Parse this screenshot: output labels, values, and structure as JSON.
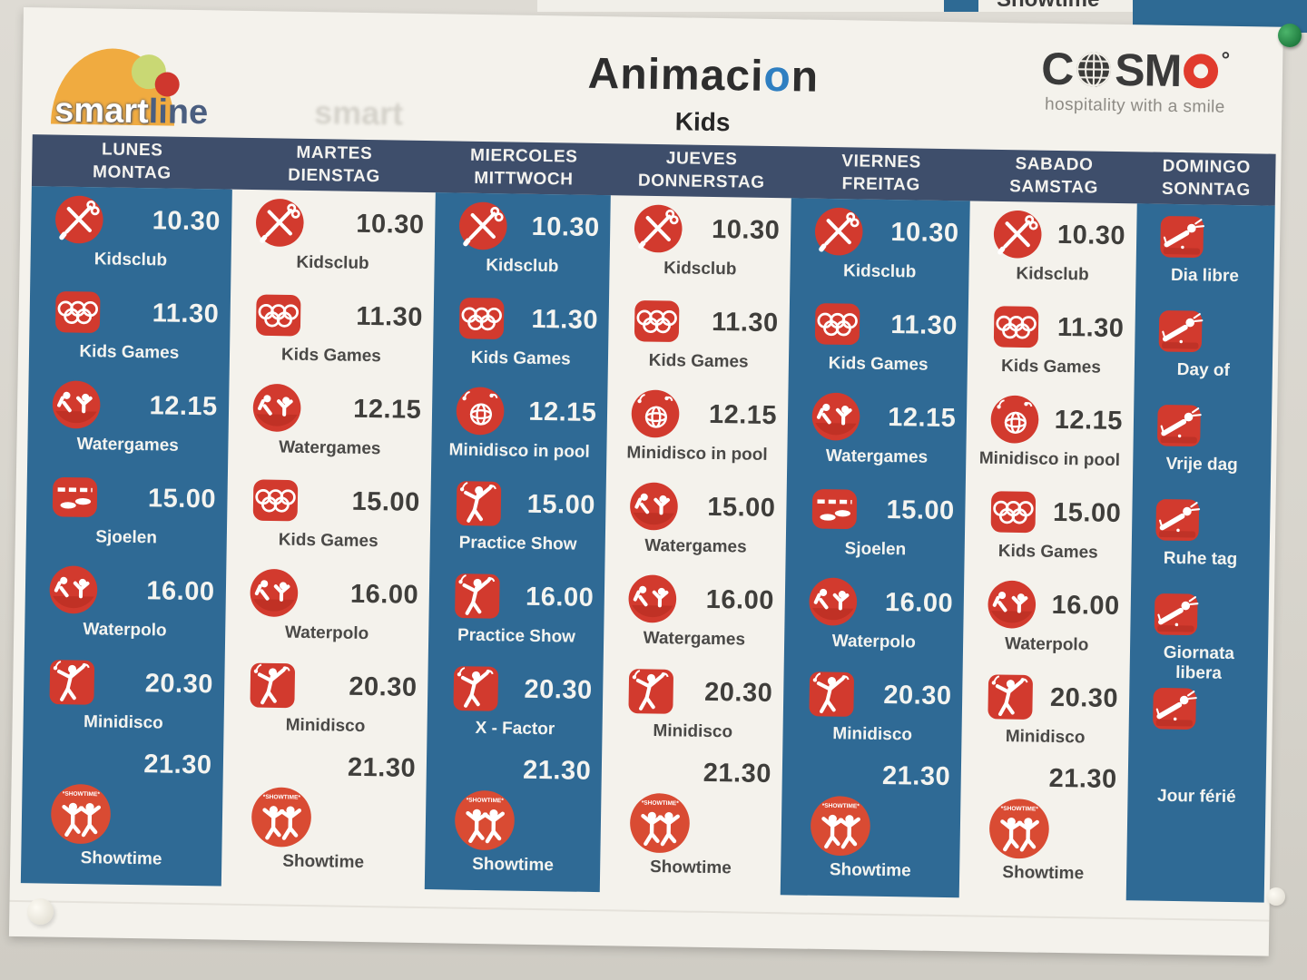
{
  "wall": {
    "other_poster_fragment_label": "Showtime"
  },
  "header": {
    "smartline": {
      "word1": "smart",
      "word2": "line"
    },
    "ghost_text": "smart",
    "title_parts": [
      "Animaci",
      "o",
      "n"
    ],
    "subtitle": "Kids",
    "cosmo": {
      "c": "C",
      "sm": "SM",
      "degree": "°",
      "tagline": "hospitality with a smile"
    }
  },
  "colors": {
    "column_blue": "#2f6a95",
    "header_navy": "#3e4e6b",
    "icon_red": "#d23a2e",
    "showtime_red": "#d94b33",
    "title_accent_blue": "#2f7fc1",
    "cosmo_red": "#e13b2d",
    "smartline_orange": "#f0ab40",
    "smartline_green": "#c9d874",
    "smartline_red": "#cf372e"
  },
  "schedule": {
    "columns": [
      {
        "day_es": "LUNES",
        "day_de": "MONTAG",
        "tone": "blue",
        "events": [
          {
            "time": "10.30",
            "label": "Kidsclub",
            "icon": "kidsclub"
          },
          {
            "time": "11.30",
            "label": "Kids Games",
            "icon": "rings"
          },
          {
            "time": "12.15",
            "label": "Watergames",
            "icon": "swimmers"
          },
          {
            "time": "15.00",
            "label": "Sjoelen",
            "icon": "sjoelen"
          },
          {
            "time": "16.00",
            "label": "Waterpolo",
            "icon": "swimmers"
          },
          {
            "time": "20.30",
            "label": "Minidisco",
            "icon": "dancer"
          },
          {
            "time": "21.30",
            "label": "Showtime",
            "icon": "showtime",
            "time_above": true
          }
        ]
      },
      {
        "day_es": "MARTES",
        "day_de": "DIENSTAG",
        "tone": "white",
        "events": [
          {
            "time": "10.30",
            "label": "Kidsclub",
            "icon": "kidsclub"
          },
          {
            "time": "11.30",
            "label": "Kids Games",
            "icon": "rings"
          },
          {
            "time": "12.15",
            "label": "Watergames",
            "icon": "swimmers"
          },
          {
            "time": "15.00",
            "label": "Kids Games",
            "icon": "rings"
          },
          {
            "time": "16.00",
            "label": "Waterpolo",
            "icon": "swimmers"
          },
          {
            "time": "20.30",
            "label": "Minidisco",
            "icon": "dancer"
          },
          {
            "time": "21.30",
            "label": "Showtime",
            "icon": "showtime",
            "time_above": true
          }
        ]
      },
      {
        "day_es": "MIERCOLES",
        "day_de": "MITTWOCH",
        "tone": "blue",
        "events": [
          {
            "time": "10.30",
            "label": "Kidsclub",
            "icon": "kidsclub"
          },
          {
            "time": "11.30",
            "label": "Kids Games",
            "icon": "rings"
          },
          {
            "time": "12.15",
            "label": "Minidisco in pool",
            "icon": "discoball"
          },
          {
            "time": "15.00",
            "label": "Practice Show",
            "icon": "dancer"
          },
          {
            "time": "16.00",
            "label": "Practice Show",
            "icon": "dancer"
          },
          {
            "time": "20.30",
            "label": "X - Factor",
            "icon": "dancer"
          },
          {
            "time": "21.30",
            "label": "Showtime",
            "icon": "showtime",
            "time_above": true
          }
        ]
      },
      {
        "day_es": "JUEVES",
        "day_de": "DONNERSTAG",
        "tone": "white",
        "events": [
          {
            "time": "10.30",
            "label": "Kidsclub",
            "icon": "kidsclub"
          },
          {
            "time": "11.30",
            "label": "Kids Games",
            "icon": "rings"
          },
          {
            "time": "12.15",
            "label": "Minidisco in pool",
            "icon": "discoball"
          },
          {
            "time": "15.00",
            "label": "Watergames",
            "icon": "swimmers"
          },
          {
            "time": "16.00",
            "label": "Watergames",
            "icon": "swimmers"
          },
          {
            "time": "20.30",
            "label": "Minidisco",
            "icon": "dancer"
          },
          {
            "time": "21.30",
            "label": "Showtime",
            "icon": "showtime",
            "time_above": true
          }
        ]
      },
      {
        "day_es": "VIERNES",
        "day_de": "FREITAG",
        "tone": "blue",
        "events": [
          {
            "time": "10.30",
            "label": "Kidsclub",
            "icon": "kidsclub"
          },
          {
            "time": "11.30",
            "label": "Kids Games",
            "icon": "rings"
          },
          {
            "time": "12.15",
            "label": "Watergames",
            "icon": "swimmers"
          },
          {
            "time": "15.00",
            "label": "Sjoelen",
            "icon": "sjoelen"
          },
          {
            "time": "16.00",
            "label": "Waterpolo",
            "icon": "swimmers"
          },
          {
            "time": "20.30",
            "label": "Minidisco",
            "icon": "dancer"
          },
          {
            "time": "21.30",
            "label": "Showtime",
            "icon": "showtime",
            "time_above": true
          }
        ]
      },
      {
        "day_es": "SABADO",
        "day_de": "SAMSTAG",
        "tone": "white",
        "events": [
          {
            "time": "10.30",
            "label": "Kidsclub",
            "icon": "kidsclub"
          },
          {
            "time": "11.30",
            "label": "Kids Games",
            "icon": "rings"
          },
          {
            "time": "12.15",
            "label": "Minidisco in pool",
            "icon": "discoball"
          },
          {
            "time": "15.00",
            "label": "Kids Games",
            "icon": "rings"
          },
          {
            "time": "16.00",
            "label": "Waterpolo",
            "icon": "swimmers"
          },
          {
            "time": "20.30",
            "label": "Minidisco",
            "icon": "dancer"
          },
          {
            "time": "21.30",
            "label": "Showtime",
            "icon": "showtime",
            "time_above": true
          }
        ]
      },
      {
        "day_es": "DOMINGO",
        "day_de": "SONNTAG",
        "tone": "blue",
        "events": [
          {
            "label": "Dia libre",
            "icon": "freeday",
            "free": true
          },
          {
            "label": "Day of",
            "icon": "freeday",
            "free": true
          },
          {
            "label": "Vrije dag",
            "icon": "freeday",
            "free": true
          },
          {
            "label": "Ruhe tag",
            "icon": "freeday",
            "free": true
          },
          {
            "label": "Giornata libera",
            "icon": "freeday",
            "free": true
          },
          {
            "label": "Jour férié",
            "icon": "freeday",
            "free": true,
            "detached": true
          }
        ]
      }
    ]
  }
}
